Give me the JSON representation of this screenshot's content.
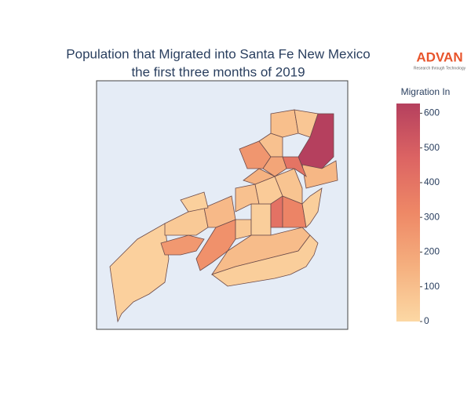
{
  "chart_data": {
    "type": "choropleth",
    "title": [
      "Population that Migrated into Santa Fe New Mexico",
      "the first three months of 2019"
    ],
    "colorbar_title": "Migration In",
    "zlim": [
      0,
      628
    ],
    "zticks": [
      0,
      100,
      200,
      300,
      400,
      500,
      600
    ],
    "colorscale": [
      "#fcd8a4",
      "#f5b07f",
      "#ee8866",
      "#dc6463",
      "#b5405e"
    ],
    "values": [
      30,
      60,
      250,
      280,
      120,
      60,
      40,
      410,
      330,
      110,
      40,
      90,
      50,
      80,
      260,
      90,
      100,
      628,
      70,
      130,
      400,
      200,
      150,
      40,
      30
    ],
    "logo": {
      "name": "ADVAN",
      "tagline": "Research through Technology"
    }
  }
}
